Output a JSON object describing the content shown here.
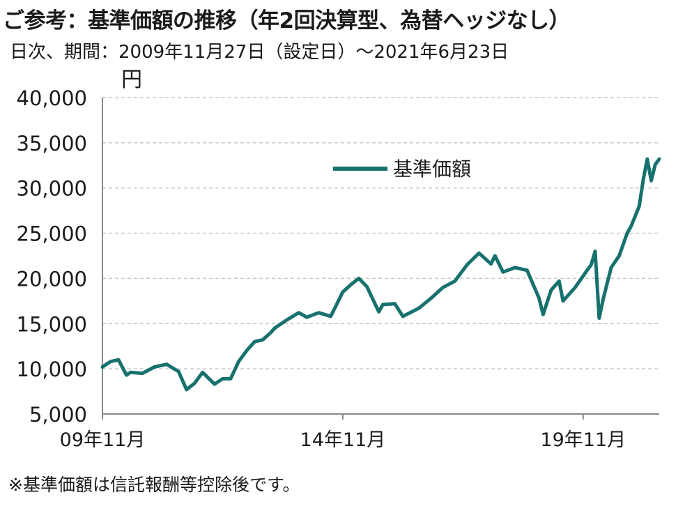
{
  "header": {
    "title": "ご参考：基準価額の推移（年2回決算型、為替ヘッジなし）",
    "subtitle": "日次、期間：2009年11月27日（設定日）〜2021年6月23日"
  },
  "footer": {
    "note": "※基準価額は信託報酬等控除後です。"
  },
  "colors": {
    "series": "#17716e",
    "grid": "#c8c8c8",
    "axis": "#888888"
  },
  "chart_data": {
    "type": "line",
    "title": "ご参考：基準価額の推移（年2回決算型、為替ヘッジなし）",
    "ylabel": "円",
    "ylim": [
      5000,
      40000
    ],
    "yticks": [
      5000,
      10000,
      15000,
      20000,
      25000,
      30000,
      35000,
      40000
    ],
    "ytick_labels": [
      "5,000",
      "10,000",
      "15,000",
      "20,000",
      "25,000",
      "30,000",
      "35,000",
      "40,000"
    ],
    "xlim": [
      "2009-11",
      "2021-06"
    ],
    "xticks": [
      "2009-11",
      "2014-11",
      "2019-11"
    ],
    "xtick_labels": [
      "09年11月",
      "14年11月",
      "19年11月"
    ],
    "grid": "horizontal dashed",
    "legend": "upper center",
    "series": [
      {
        "name": "基準価額",
        "x": [
          "2009-11",
          "2010-01",
          "2010-03",
          "2010-05",
          "2010-06",
          "2010-09",
          "2010-12",
          "2011-03",
          "2011-06",
          "2011-08",
          "2011-10",
          "2011-12",
          "2012-03",
          "2012-05",
          "2012-07",
          "2012-09",
          "2012-11",
          "2013-01",
          "2013-03",
          "2013-05",
          "2013-06",
          "2013-09",
          "2013-12",
          "2014-02",
          "2014-05",
          "2014-08",
          "2014-11",
          "2015-01",
          "2015-03",
          "2015-05",
          "2015-08",
          "2015-09",
          "2015-12",
          "2016-02",
          "2016-06",
          "2016-09",
          "2016-12",
          "2017-03",
          "2017-06",
          "2017-09",
          "2017-12",
          "2018-01",
          "2018-03",
          "2018-06",
          "2018-09",
          "2018-12",
          "2019-01",
          "2019-03",
          "2019-05",
          "2019-06",
          "2019-09",
          "2019-12",
          "2020-01",
          "2020-02",
          "2020-03",
          "2020-04",
          "2020-06",
          "2020-08",
          "2020-10",
          "2020-11",
          "2021-01",
          "2021-02",
          "2021-03",
          "2021-04",
          "2021-05",
          "2021-06"
        ],
        "y": [
          10200,
          10800,
          11000,
          9300,
          9600,
          9500,
          10200,
          10500,
          9700,
          7700,
          8400,
          9600,
          8300,
          8900,
          8900,
          10800,
          12000,
          13000,
          13200,
          14000,
          14500,
          15400,
          16200,
          15700,
          16200,
          15800,
          18500,
          19300,
          20000,
          19100,
          16300,
          17100,
          17200,
          15800,
          16700,
          17800,
          19000,
          19700,
          21500,
          22800,
          21600,
          22500,
          20700,
          21200,
          20900,
          17800,
          16000,
          18700,
          19700,
          17500,
          19000,
          20900,
          21500,
          23000,
          15600,
          17700,
          21200,
          22500,
          25000,
          25800,
          28000,
          30900,
          33200,
          30800,
          32600,
          33200
        ]
      }
    ]
  }
}
